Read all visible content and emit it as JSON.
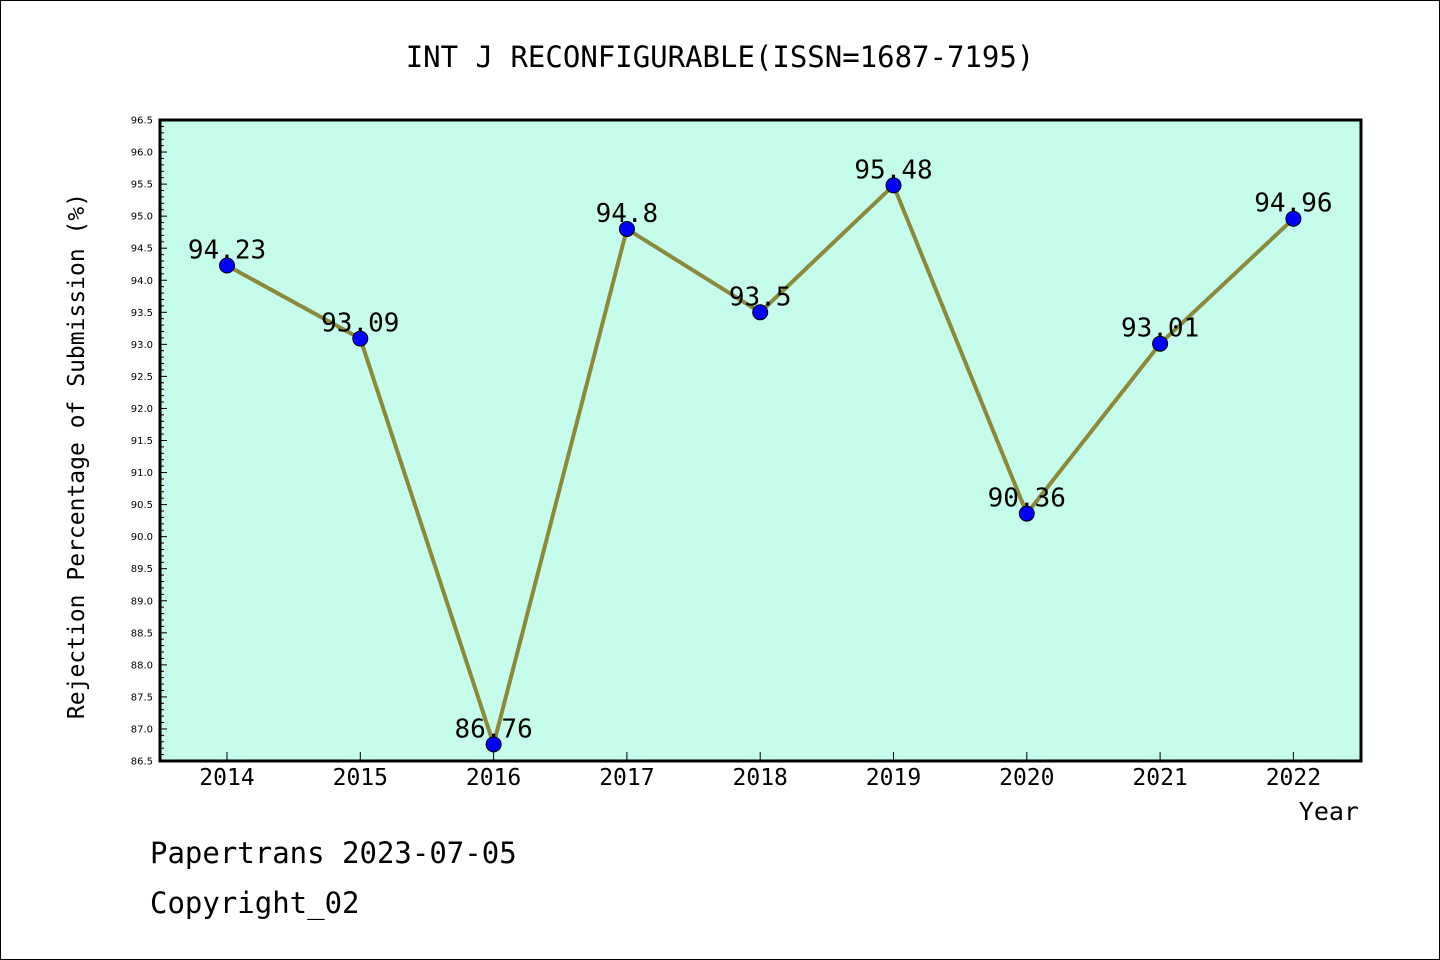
{
  "chart_data": {
    "type": "line",
    "title": "INT J RECONFIGURABLE(ISSN=1687-7195)",
    "xlabel": "Year",
    "ylabel": "Rejection Percentage of Submission (%)",
    "categories": [
      "2014",
      "2015",
      "2016",
      "2017",
      "2018",
      "2019",
      "2020",
      "2021",
      "2022"
    ],
    "values": [
      94.23,
      93.09,
      86.76,
      94.8,
      93.5,
      95.48,
      90.36,
      93.01,
      94.96
    ],
    "data_labels": [
      "94.23",
      "93.09",
      "86.76",
      "94.8",
      "93.5",
      "95.48",
      "90.36",
      "93.01",
      "94.96"
    ],
    "ylim": [
      86.5,
      96.5
    ],
    "yticks": [
      "86.5",
      "87.0",
      "87.5",
      "88.0",
      "88.5",
      "89.0",
      "89.5",
      "90.0",
      "90.5",
      "91.0",
      "91.5",
      "92.0",
      "92.5",
      "93.0",
      "93.5",
      "94.0",
      "94.5",
      "95.0",
      "95.5",
      "96.0",
      "96.5"
    ],
    "grid": false,
    "colors": {
      "plot_background": "#c6fcec",
      "line": "#8b8a3a",
      "marker": "#0000ff"
    }
  },
  "footer": {
    "source": "Papertrans 2023-07-05",
    "copyright": "Copyright_02"
  }
}
